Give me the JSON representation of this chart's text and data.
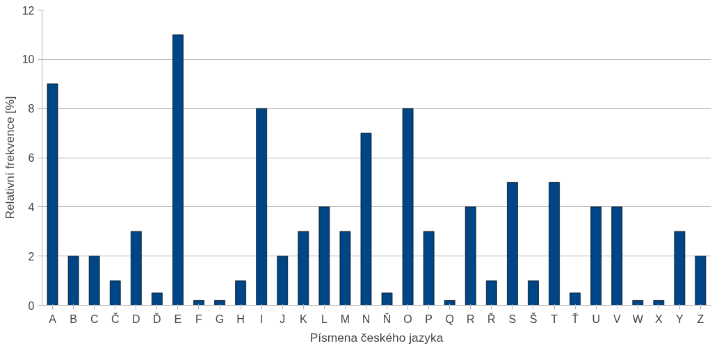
{
  "chart_data": {
    "type": "bar",
    "xlabel": "Písmena českého jazyka",
    "ylabel": "Relativní frekvence [%]",
    "categories": [
      "A",
      "B",
      "C",
      "Č",
      "D",
      "Ď",
      "E",
      "F",
      "G",
      "H",
      "I",
      "J",
      "K",
      "L",
      "M",
      "N",
      "Ň",
      "O",
      "P",
      "Q",
      "R",
      "Ř",
      "S",
      "Š",
      "T",
      "Ť",
      "U",
      "V",
      "W",
      "X",
      "Y",
      "Z"
    ],
    "values": [
      9,
      2,
      2,
      1,
      3,
      0.5,
      11,
      0.2,
      0.2,
      1,
      8,
      2,
      3,
      4,
      3,
      7,
      0.5,
      8,
      3,
      0.2,
      4,
      1,
      5,
      1,
      5,
      0.5,
      4,
      4,
      0.2,
      0.2,
      3,
      2
    ],
    "color": "#004586",
    "ylim": [
      0,
      12
    ],
    "yticks": [
      0,
      2,
      4,
      6,
      8,
      10,
      12
    ],
    "grid": "y"
  }
}
